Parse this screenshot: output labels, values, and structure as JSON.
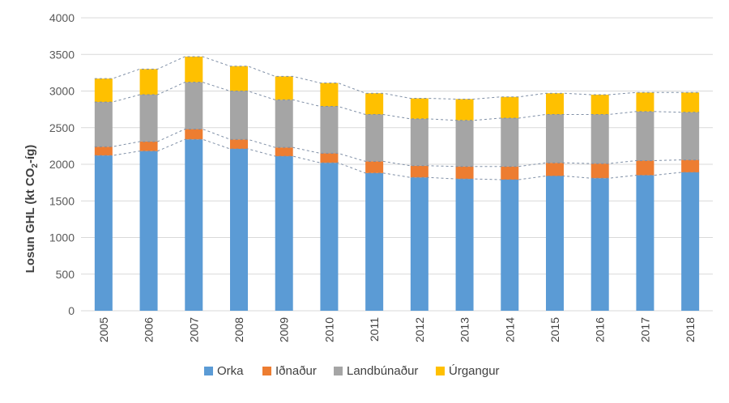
{
  "chart_data": {
    "type": "bar",
    "stacked": true,
    "categories": [
      "2005",
      "2006",
      "2007",
      "2008",
      "2009",
      "2010",
      "2011",
      "2012",
      "2013",
      "2014",
      "2015",
      "2016",
      "2017",
      "2018"
    ],
    "series": [
      {
        "name": "Orka",
        "color": "#5b9bd5",
        "values": [
          2120,
          2180,
          2340,
          2210,
          2110,
          2020,
          1880,
          1820,
          1800,
          1790,
          1840,
          1810,
          1850,
          1890
        ]
      },
      {
        "name": "Iðnaður",
        "color": "#ed7d31",
        "values": [
          120,
          130,
          140,
          130,
          120,
          130,
          160,
          160,
          170,
          180,
          180,
          200,
          200,
          170
        ]
      },
      {
        "name": "Landbúnaður",
        "color": "#a5a5a5",
        "values": [
          610,
          640,
          640,
          660,
          650,
          640,
          640,
          640,
          630,
          660,
          660,
          670,
          670,
          650
        ]
      },
      {
        "name": "Úrgangur",
        "color": "#ffc000",
        "values": [
          320,
          350,
          350,
          340,
          320,
          320,
          290,
          280,
          290,
          290,
          290,
          270,
          260,
          270
        ]
      }
    ],
    "ylabel_main": "Losun GHL (kt CO",
    "ylabel_sub": "2",
    "ylabel_end": "-íg)",
    "xlabel": "",
    "title": "",
    "ylim": [
      0,
      4000
    ],
    "yticks": [
      0,
      500,
      1000,
      1500,
      2000,
      2500,
      3000,
      3500,
      4000
    ],
    "grid": true,
    "legend_position": "bottom",
    "trend_lines": "dashed lines connecting stack boundaries"
  }
}
